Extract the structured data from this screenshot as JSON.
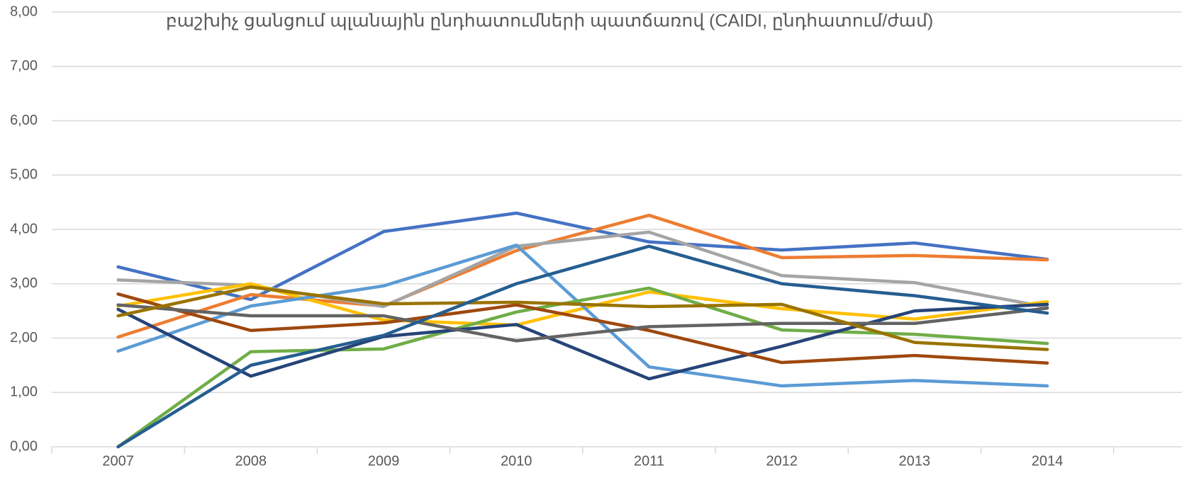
{
  "chart_data": {
    "type": "line",
    "title": "բաշխիչ ցանցում պլանային ընդհատումների պատճառով (CAIDI, ընդհատում/ժամ)",
    "categories": [
      "2007",
      "2008",
      "2009",
      "2010",
      "2011",
      "2012",
      "2013",
      "2014"
    ],
    "ylim": [
      0,
      8
    ],
    "yticks": [
      {
        "value": 0,
        "label": "0,00"
      },
      {
        "value": 1,
        "label": "1,00"
      },
      {
        "value": 2,
        "label": "2,00"
      },
      {
        "value": 3,
        "label": "3,00"
      },
      {
        "value": 4,
        "label": "4,00"
      },
      {
        "value": 5,
        "label": "5,00"
      },
      {
        "value": 6,
        "label": "6,00"
      },
      {
        "value": 7,
        "label": "7,00"
      },
      {
        "value": 8,
        "label": "8,00"
      }
    ],
    "grid": true,
    "series": [
      {
        "color": "#4472c4",
        "values": [
          3.31,
          2.71,
          3.96,
          4.3,
          3.77,
          3.62,
          3.75,
          3.45
        ]
      },
      {
        "color": "#ed7d31",
        "values": [
          2.02,
          2.8,
          2.59,
          3.61,
          4.26,
          3.48,
          3.52,
          3.44
        ]
      },
      {
        "color": "#a5a5a5",
        "values": [
          3.07,
          2.97,
          2.58,
          3.69,
          3.95,
          3.15,
          3.02,
          2.57
        ]
      },
      {
        "color": "#ffc000",
        "values": [
          2.59,
          3.0,
          2.33,
          2.24,
          2.85,
          2.54,
          2.35,
          2.67
        ]
      },
      {
        "color": "#5b9bd5",
        "values": [
          1.76,
          2.59,
          2.96,
          3.71,
          1.47,
          1.12,
          1.22,
          1.12
        ]
      },
      {
        "color": "#70ad47",
        "values": [
          0,
          1.75,
          1.8,
          2.48,
          2.92,
          2.15,
          2.07,
          1.9
        ]
      },
      {
        "color": "#264478",
        "values": [
          2.53,
          1.3,
          2.03,
          2.25,
          1.25,
          1.85,
          2.5,
          2.62
        ]
      },
      {
        "color": "#9e480e",
        "values": [
          2.81,
          2.14,
          2.28,
          2.61,
          2.14,
          1.55,
          1.68,
          1.54
        ]
      },
      {
        "color": "#636363",
        "values": [
          2.61,
          2.41,
          2.41,
          1.95,
          2.21,
          2.27,
          2.27,
          2.55
        ]
      },
      {
        "color": "#997300",
        "values": [
          2.41,
          2.94,
          2.63,
          2.66,
          2.58,
          2.62,
          1.92,
          1.79
        ]
      },
      {
        "color": "#255e91",
        "values": [
          0,
          1.5,
          2.05,
          3.0,
          3.69,
          3.0,
          2.78,
          2.46
        ]
      }
    ]
  }
}
